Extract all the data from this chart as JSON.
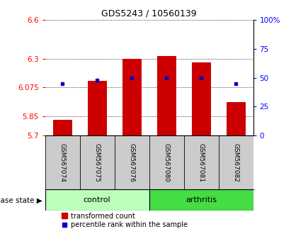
{
  "title": "GDS5243 / 10560139",
  "samples": [
    "GSM567074",
    "GSM567075",
    "GSM567076",
    "GSM567080",
    "GSM567081",
    "GSM567082"
  ],
  "groups": [
    "control",
    "control",
    "control",
    "arthritis",
    "arthritis",
    "arthritis"
  ],
  "transformed_count": [
    5.82,
    6.125,
    6.3,
    6.32,
    6.27,
    5.96
  ],
  "percentile_rank": [
    45,
    48,
    50,
    50,
    50,
    45
  ],
  "ylim_left": [
    5.7,
    6.6
  ],
  "yticks_left": [
    5.7,
    5.85,
    6.075,
    6.3,
    6.6
  ],
  "yticks_right": [
    0,
    25,
    50,
    75,
    100
  ],
  "ylim_right": [
    0,
    100
  ],
  "bar_color": "#CC0000",
  "dot_color": "#0000CC",
  "bar_bottom": 5.7,
  "control_color": "#BBFFBB",
  "arthritis_color": "#44DD44",
  "group_label": "disease state",
  "legend_bar_label": "transformed count",
  "legend_dot_label": "percentile rank within the sample",
  "label_area_color": "#CCCCCC",
  "figsize": [
    4.11,
    3.54
  ],
  "dpi": 100
}
